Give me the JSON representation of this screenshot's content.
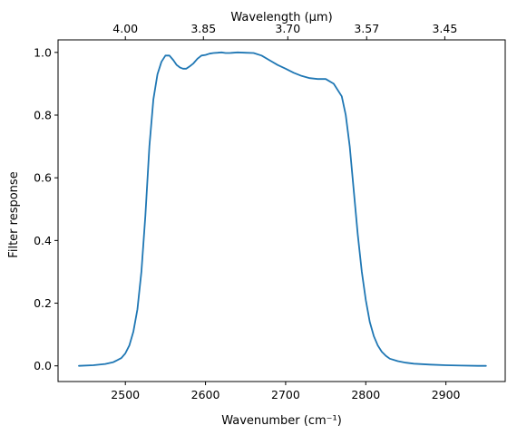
{
  "chart_data": {
    "type": "line",
    "xlabel": "Wavenumber (cm⁻¹)",
    "ylabel": "Filter response",
    "top_xlabel": "Wavelength (μm)",
    "xlim": [
      2416,
      2974
    ],
    "ylim": [
      -0.05,
      1.04
    ],
    "x_ticks": [
      2500,
      2600,
      2700,
      2800,
      2900
    ],
    "y_ticks": [
      0.0,
      0.2,
      0.4,
      0.6,
      0.8,
      1.0
    ],
    "top_ticks": [
      {
        "label": "4.00",
        "wavenumber": 2500
      },
      {
        "label": "3.85",
        "wavenumber": 2597.4
      },
      {
        "label": "3.70",
        "wavenumber": 2702.7
      },
      {
        "label": "3.57",
        "wavenumber": 2801.1
      },
      {
        "label": "3.45",
        "wavenumber": 2898.6
      }
    ],
    "grid": false,
    "series": [
      {
        "color": "#1f77b4",
        "x": [
          2442,
          2460,
          2475,
          2485,
          2495,
          2500,
          2505,
          2510,
          2515,
          2520,
          2525,
          2530,
          2535,
          2540,
          2545,
          2550,
          2555,
          2560,
          2564,
          2568,
          2572,
          2576,
          2580,
          2585,
          2590,
          2595,
          2600,
          2605,
          2610,
          2615,
          2620,
          2625,
          2630,
          2640,
          2650,
          2660,
          2670,
          2680,
          2690,
          2700,
          2710,
          2720,
          2730,
          2740,
          2750,
          2760,
          2770,
          2775,
          2780,
          2785,
          2790,
          2795,
          2800,
          2805,
          2810,
          2815,
          2820,
          2825,
          2830,
          2840,
          2850,
          2860,
          2880,
          2900,
          2920,
          2940,
          2950
        ],
        "y": [
          0.0,
          0.002,
          0.006,
          0.012,
          0.025,
          0.04,
          0.065,
          0.11,
          0.18,
          0.3,
          0.48,
          0.7,
          0.85,
          0.93,
          0.97,
          0.99,
          0.99,
          0.975,
          0.96,
          0.952,
          0.948,
          0.948,
          0.955,
          0.965,
          0.98,
          0.99,
          0.992,
          0.996,
          0.998,
          0.999,
          1.0,
          0.998,
          0.998,
          1.0,
          0.999,
          0.998,
          0.99,
          0.975,
          0.96,
          0.948,
          0.935,
          0.925,
          0.918,
          0.915,
          0.915,
          0.9,
          0.86,
          0.8,
          0.7,
          0.56,
          0.42,
          0.3,
          0.21,
          0.14,
          0.095,
          0.065,
          0.045,
          0.032,
          0.023,
          0.015,
          0.01,
          0.007,
          0.004,
          0.002,
          0.001,
          0.0,
          0.0
        ]
      }
    ]
  }
}
